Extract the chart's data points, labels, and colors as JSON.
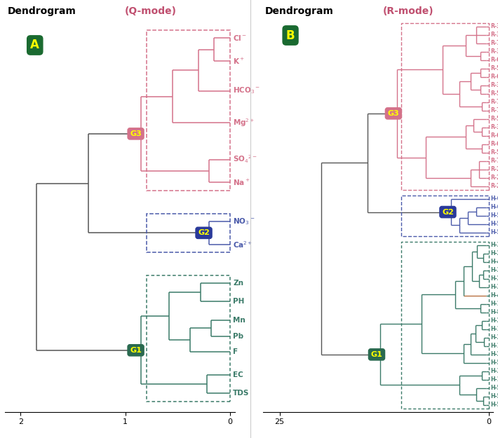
{
  "title_A": "Dendrogram",
  "title_A_mode": "(Q-mode)",
  "title_B": "Dendrogram",
  "title_B_mode": "(R-mode)",
  "label_A": "A",
  "label_B": "B",
  "bg_color": "#ffffff",
  "panel_A": {
    "color_G3": "#d4728a",
    "color_G2": "#4a5aaa",
    "color_G1": "#3a7a68",
    "color_root": "#555555",
    "xlim_left": 2.15,
    "xlim_right": -0.05,
    "xticks": [
      2,
      1,
      0
    ]
  },
  "panel_B": {
    "color_G3": "#d4728a",
    "color_G2": "#4a5aaa",
    "color_G1": "#3a7a68",
    "color_root": "#555555",
    "color_H48": "#b87040",
    "xlim_left": 27.0,
    "xlim_right": -0.5,
    "xticks": [
      25,
      0
    ]
  }
}
